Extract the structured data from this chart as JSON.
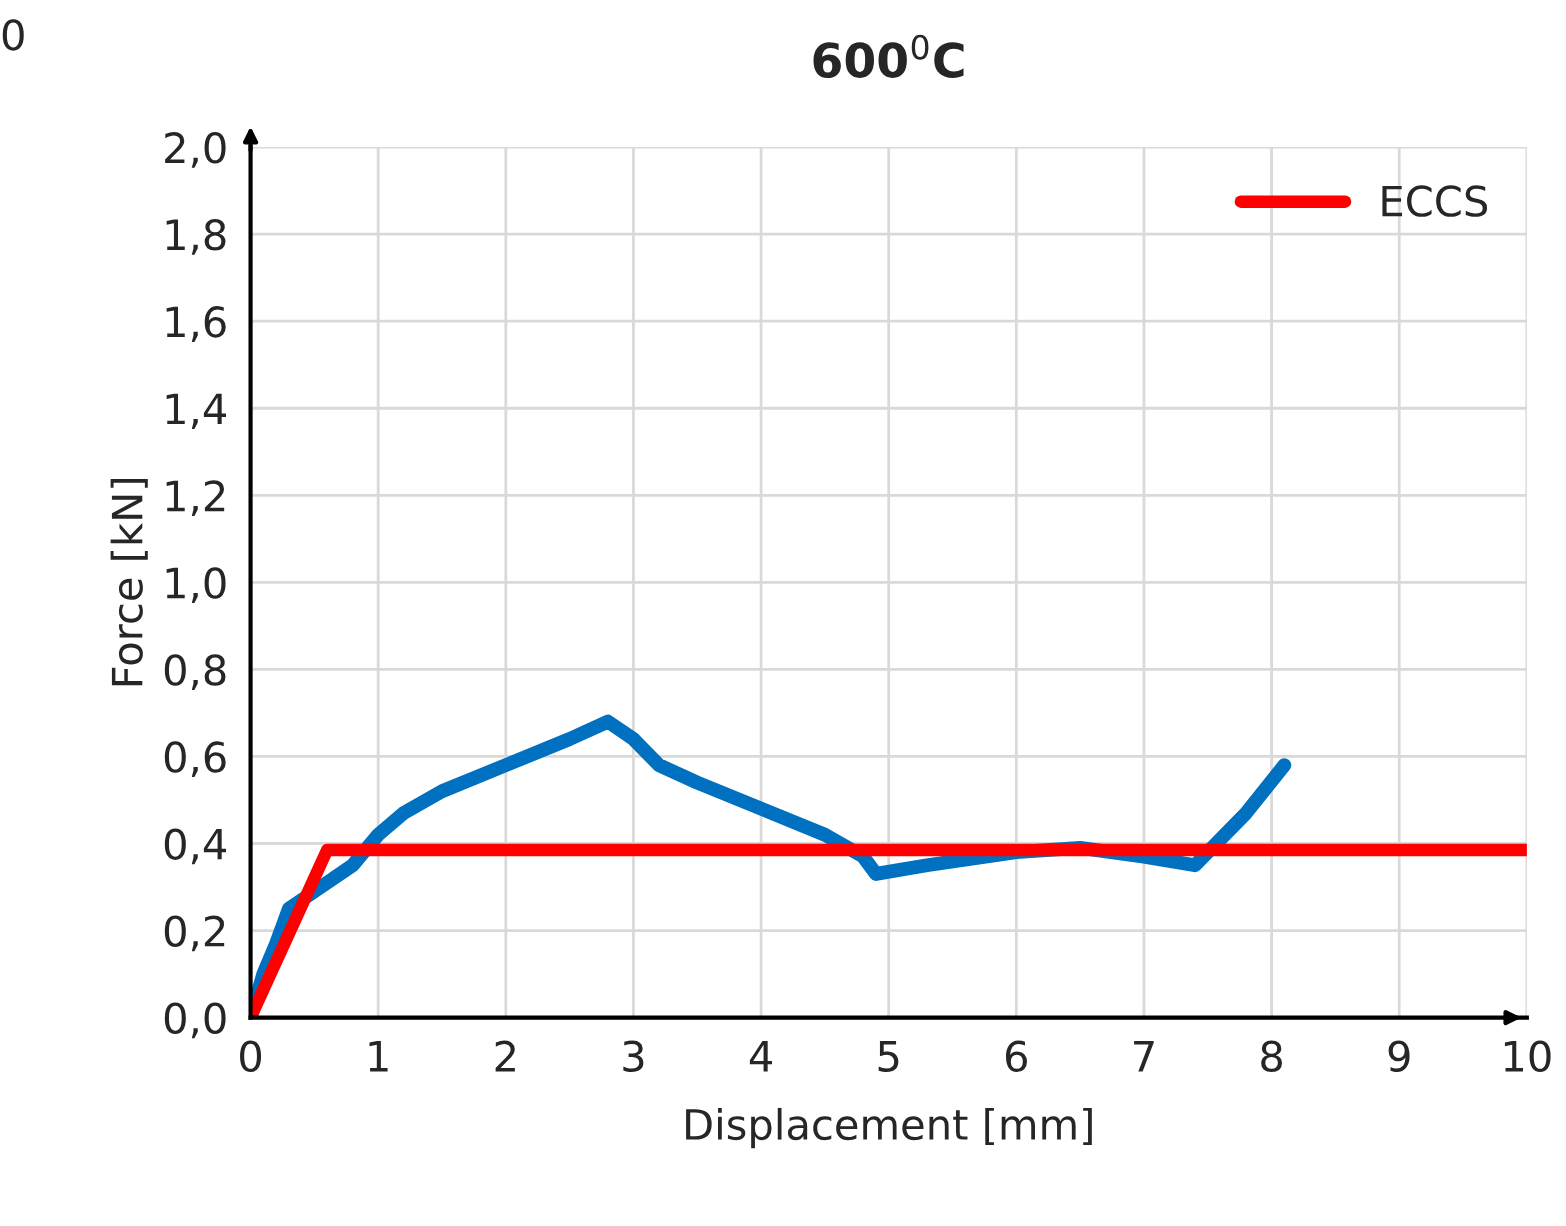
{
  "chart_data": {
    "type": "line",
    "title": "600$^{0}$C",
    "xlabel": "Displacement [mm]",
    "ylabel": "Force [kN]",
    "annotations": [
      "0"
    ],
    "series": [
      {
        "color": "#0070c0",
        "x": [
          0,
          0.1,
          0.2,
          0.3,
          0.5,
          0.8,
          1.0,
          1.2,
          1.5,
          2.0,
          2.5,
          2.8,
          3.0,
          3.2,
          3.5,
          4.0,
          4.5,
          4.8,
          4.9,
          5.3,
          6.0,
          6.5,
          7.0,
          7.4,
          7.6,
          7.8,
          8.1
        ],
        "values": [
          0,
          0.1,
          0.17,
          0.25,
          0.29,
          0.35,
          0.42,
          0.47,
          0.52,
          0.58,
          0.64,
          0.68,
          0.64,
          0.58,
          0.54,
          0.48,
          0.42,
          0.37,
          0.33,
          0.35,
          0.38,
          0.39,
          0.37,
          0.35,
          0.41,
          0.47,
          0.58
        ]
      },
      {
        "name": "ECCS",
        "color": "#ff0000",
        "x": [
          0,
          0.6,
          10
        ],
        "values": [
          0,
          0.385,
          0.385
        ]
      }
    ],
    "xlim": [
      0,
      10
    ],
    "xticks": [
      0,
      1,
      2,
      3,
      4,
      5,
      6,
      7,
      8,
      9,
      10
    ],
    "ylim": [
      0,
      2
    ],
    "yticks": [
      {
        "value": 0,
        "label": "0,0"
      },
      {
        "value": 0.2,
        "label": "0,2"
      },
      {
        "value": 0.4,
        "label": "0,4"
      },
      {
        "value": 0.6,
        "label": "0,6"
      },
      {
        "value": 0.8,
        "label": "0,8"
      },
      {
        "value": 1.0,
        "label": "1,0"
      },
      {
        "value": 1.2,
        "label": "1,2"
      },
      {
        "value": 1.4,
        "label": "1,4"
      },
      {
        "value": 1.6,
        "label": "1,6"
      },
      {
        "value": 1.8,
        "label": "1,8"
      },
      {
        "value": 2.0,
        "label": "2,0"
      }
    ],
    "grid": true,
    "legend": "top right",
    "line_style": "solid"
  }
}
